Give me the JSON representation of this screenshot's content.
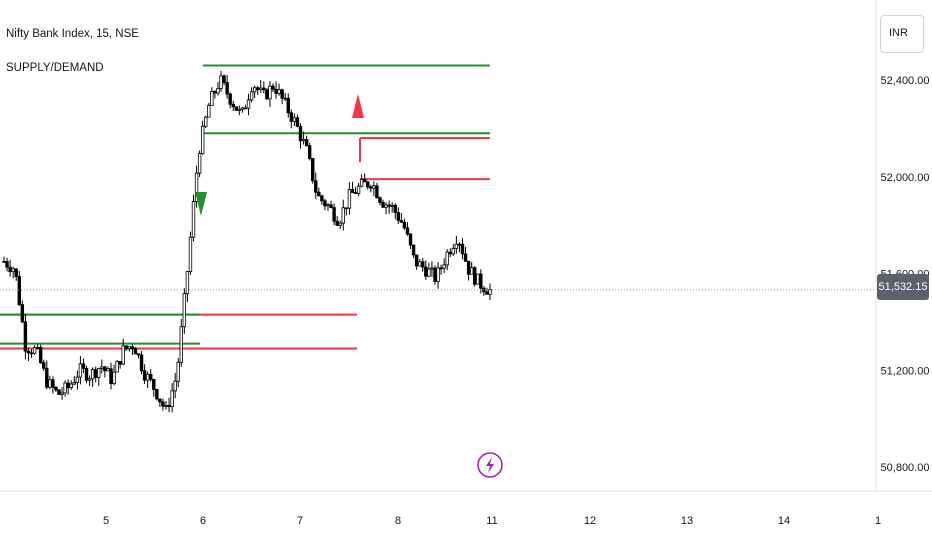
{
  "header": {
    "symbol": "Nifty Bank Index, 15, NSE",
    "indicator": "SUPPLY/DEMAND"
  },
  "currency": "INR",
  "last_price_label": "51,532.15",
  "colors": {
    "candle": "#000000",
    "supply": "#f23645",
    "demand": "#22902f",
    "price_line": "#9598a1",
    "lightning": "#9c27b0"
  },
  "icons": {
    "event": "lightning-icon"
  },
  "chart_data": {
    "type": "candlestick",
    "y_ticks": [
      "52,400.00",
      "52,000.00",
      "51,600.00",
      "51,200.00",
      "50,800.00"
    ],
    "y_tick_values": [
      52400,
      52000,
      51600,
      51200,
      50800
    ],
    "x_ticks": [
      "5",
      "6",
      "7",
      "8",
      "11",
      "12",
      "13",
      "14",
      "1"
    ],
    "last_price": 51532.15,
    "candles_close_path": [
      51650,
      51620,
      51300,
      51280,
      51150,
      51100,
      51130,
      51200,
      51180,
      51220,
      51160,
      51280,
      51310,
      51190,
      51120,
      51030,
      51180,
      51620,
      52100,
      52300,
      52400,
      52320,
      52250,
      52390,
      52330,
      52380,
      52300,
      52220,
      52110,
      51920,
      51880,
      51820,
      51920,
      51960,
      51980,
      51900,
      51870,
      51800,
      51650,
      51620,
      51580,
      51680,
      51760,
      51620,
      51560,
      51530
    ],
    "zones": [
      {
        "kind": "demand",
        "price": 52460
      },
      {
        "kind": "demand",
        "price": 52180
      },
      {
        "kind": "supply",
        "price": 52160
      },
      {
        "kind": "supply",
        "price": 51990
      },
      {
        "kind": "supply",
        "price": 51430
      },
      {
        "kind": "demand",
        "price": 51430
      },
      {
        "kind": "demand",
        "price": 51310
      },
      {
        "kind": "supply",
        "price": 51290
      }
    ],
    "signals": [
      {
        "kind": "sell",
        "direction": "up"
      },
      {
        "kind": "buy",
        "direction": "down"
      }
    ]
  }
}
